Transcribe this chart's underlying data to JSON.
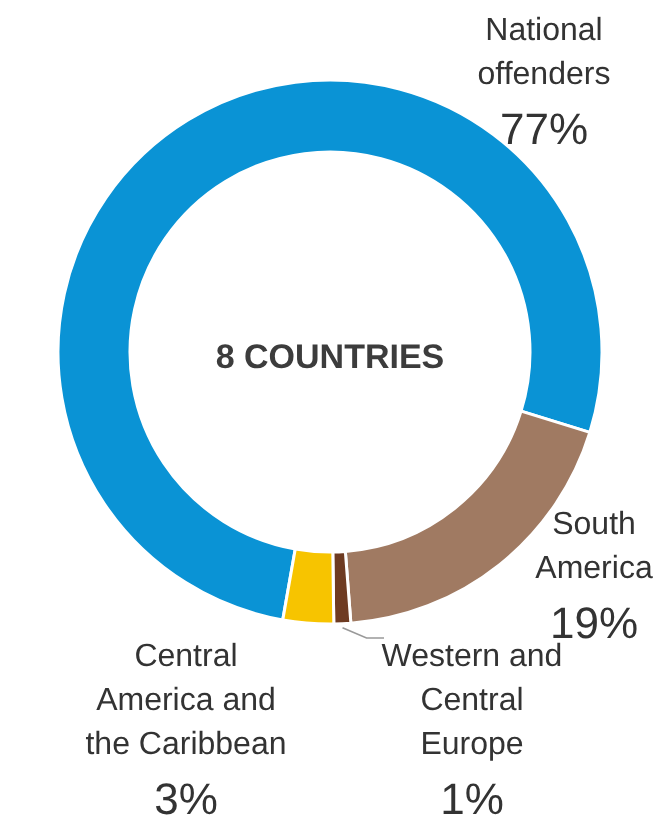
{
  "chart_data": {
    "type": "donut",
    "categories": [
      "National offenders",
      "South America",
      "Western and Central Europe",
      "Central America and the Caribbean"
    ],
    "values": [
      77,
      19,
      1,
      3
    ],
    "colors": [
      "#0a93d5",
      "#a07a62",
      "#6e3b22",
      "#f7c400"
    ],
    "value_labels": [
      "77%",
      "19%",
      "1%",
      "3%"
    ],
    "annotations": [
      "8 COUNTRIES"
    ]
  }
}
